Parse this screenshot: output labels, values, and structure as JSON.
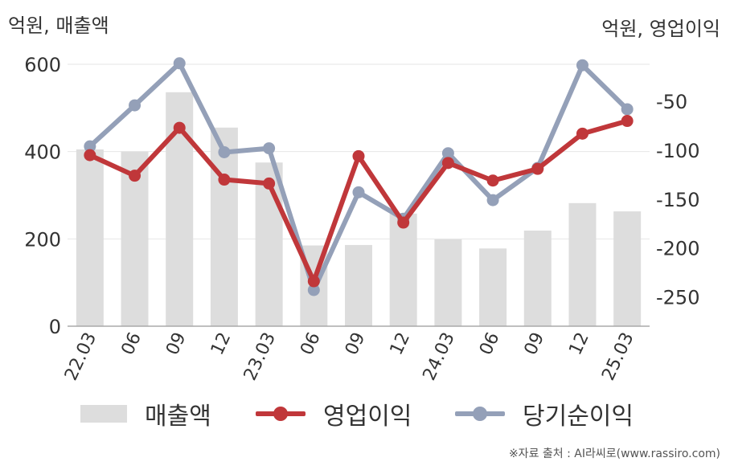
{
  "units": {
    "left": "억원, 매출액",
    "right": "억원, 영업이익"
  },
  "source": "※자료 출처 : AI라씨로(www.rassiro.com)",
  "colors": {
    "revenue": "#dddddd",
    "operating": "#c0373a",
    "net": "#94a0b8",
    "grid": "#e6e6e6",
    "axis": "#aaaaaa"
  },
  "chart_data": {
    "type": "bar",
    "categories": [
      "22.03",
      "06",
      "09",
      "12",
      "23.03",
      "06",
      "09",
      "12",
      "24.03",
      "06",
      "09",
      "12",
      "25.03"
    ],
    "y_left": {
      "ticks": [
        0,
        200,
        400,
        600
      ],
      "range": [
        0,
        600
      ]
    },
    "y_right": {
      "ticks": [
        -50,
        -100,
        -150,
        -200,
        -250
      ],
      "range": [
        -280,
        -12
      ]
    },
    "legend": {
      "position": "bottom"
    },
    "grid": true,
    "series": [
      {
        "name": "매출액",
        "type": "bar",
        "axis": "left",
        "values": [
          405,
          400,
          536,
          455,
          375,
          185,
          186,
          258,
          199,
          178,
          219,
          282,
          263
        ]
      },
      {
        "name": "영업이익",
        "type": "line",
        "axis": "right",
        "values": [
          -105,
          -126,
          -77,
          -130,
          -134,
          -234,
          -106,
          -174,
          -113,
          -131,
          -119,
          -83,
          -70
        ]
      },
      {
        "name": "당기순이익",
        "type": "line",
        "axis": "right",
        "values": [
          -96,
          -54,
          -11,
          -102,
          -98,
          -243,
          -143,
          -170,
          -103,
          -151,
          -118,
          -13,
          -58
        ]
      }
    ]
  }
}
